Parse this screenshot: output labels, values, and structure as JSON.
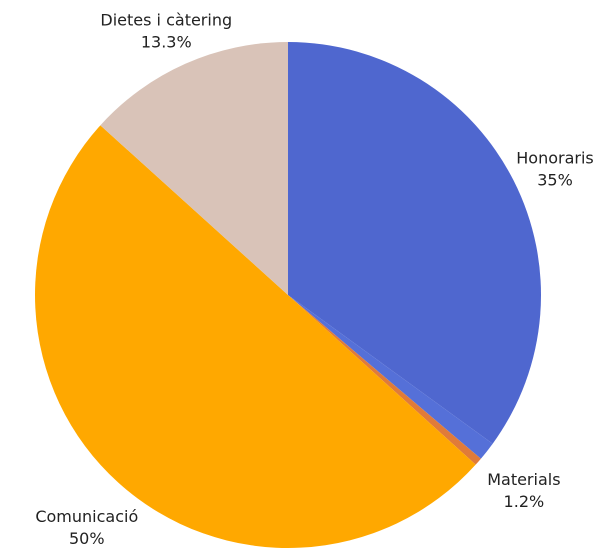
{
  "chart_data": {
    "type": "pie",
    "categories": [
      "Honoraris",
      "Materials",
      null,
      "Comunicació",
      "Dietes i càtering"
    ],
    "values": [
      35,
      1.2,
      0.5,
      50,
      13.3
    ],
    "value_labels": [
      "35%",
      "1.2%",
      null,
      "50%",
      "13.3%"
    ],
    "colors": [
      "#4f67cf",
      "#5570d8",
      "#e07b39",
      "#ffa800",
      "#d9c3b8"
    ]
  }
}
